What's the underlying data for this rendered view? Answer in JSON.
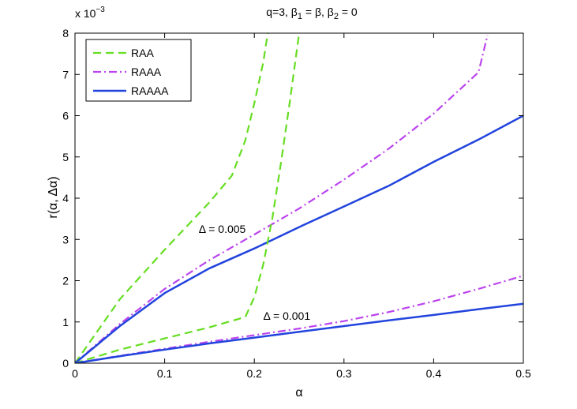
{
  "chart_data": {
    "type": "line",
    "title": {
      "base": "q=3, β",
      "s1": "1",
      "mid1": " = β, β",
      "s2": "2",
      "tail": " = 0"
    },
    "xlabel": "α",
    "ylabel": "r(α, Δα)",
    "y_exponent": {
      "base": "x 10",
      "power": "−3"
    },
    "xlim": [
      0,
      0.5
    ],
    "ylim": [
      0,
      8
    ],
    "xticks": [
      0,
      0.1,
      0.2,
      0.3,
      0.4,
      0.5
    ],
    "xtick_labels": [
      "0",
      "0.1",
      "0.2",
      "0.3",
      "0.4",
      "0.5"
    ],
    "yticks": [
      0,
      1,
      2,
      3,
      4,
      5,
      6,
      7,
      8
    ],
    "ytick_labels": [
      "0",
      "1",
      "2",
      "3",
      "4",
      "5",
      "6",
      "7",
      "8"
    ],
    "legend": [
      {
        "label": "RAA",
        "color": "#66dd22",
        "style": "dashed"
      },
      {
        "label": "RAAA",
        "color": "#bb44ee",
        "style": "dashdot"
      },
      {
        "label": "RAAAA",
        "color": "#2244dd",
        "style": "solid"
      }
    ],
    "annotations": [
      {
        "text": "Δ = 0.005",
        "x": 0.138,
        "y": 3.25
      },
      {
        "text": "Δ = 0.001",
        "x": 0.21,
        "y": 1.15
      }
    ],
    "series": [
      {
        "name": "RAA",
        "group": "Δ = 0.005",
        "style": "dashed",
        "color": "#66dd22",
        "x": [
          0,
          0.05,
          0.1,
          0.15,
          0.175,
          0.19,
          0.2,
          0.21,
          0.215
        ],
        "y": [
          0,
          1.55,
          2.75,
          3.9,
          4.55,
          5.4,
          6.3,
          7.3,
          8.0
        ]
      },
      {
        "name": "RAAA",
        "group": "Δ = 0.005",
        "style": "dashdot",
        "color": "#bb44ee",
        "x": [
          0,
          0.05,
          0.1,
          0.15,
          0.2,
          0.25,
          0.3,
          0.35,
          0.4,
          0.45,
          0.46
        ],
        "y": [
          0,
          0.95,
          1.8,
          2.5,
          3.12,
          3.75,
          4.45,
          5.2,
          6.05,
          7.05,
          7.95
        ]
      },
      {
        "name": "RAAAA",
        "group": "Δ = 0.005",
        "style": "solid",
        "color": "#2244dd",
        "x": [
          0,
          0.05,
          0.1,
          0.15,
          0.2,
          0.25,
          0.3,
          0.35,
          0.4,
          0.45,
          0.5
        ],
        "y": [
          0,
          0.9,
          1.7,
          2.3,
          2.78,
          3.3,
          3.8,
          4.3,
          4.88,
          5.42,
          6.0
        ]
      },
      {
        "name": "RAA",
        "group": "Δ = 0.001",
        "style": "dashed",
        "color": "#66dd22",
        "x": [
          0,
          0.05,
          0.1,
          0.15,
          0.19,
          0.2,
          0.21,
          0.22,
          0.23,
          0.24,
          0.25
        ],
        "y": [
          0,
          0.33,
          0.6,
          0.87,
          1.12,
          1.6,
          2.4,
          3.5,
          4.9,
          6.4,
          8.0
        ]
      },
      {
        "name": "RAAA",
        "group": "Δ = 0.001",
        "style": "dashdot",
        "color": "#bb44ee",
        "x": [
          0,
          0.05,
          0.1,
          0.15,
          0.2,
          0.25,
          0.3,
          0.35,
          0.4,
          0.45,
          0.5
        ],
        "y": [
          0,
          0.18,
          0.35,
          0.52,
          0.68,
          0.84,
          1.02,
          1.24,
          1.5,
          1.8,
          2.12
        ]
      },
      {
        "name": "RAAAA",
        "group": "Δ = 0.001",
        "style": "solid",
        "color": "#2244dd",
        "x": [
          0,
          0.05,
          0.1,
          0.15,
          0.2,
          0.25,
          0.3,
          0.35,
          0.4,
          0.45,
          0.5
        ],
        "y": [
          0,
          0.17,
          0.33,
          0.48,
          0.62,
          0.76,
          0.9,
          1.04,
          1.17,
          1.31,
          1.44
        ]
      }
    ]
  }
}
